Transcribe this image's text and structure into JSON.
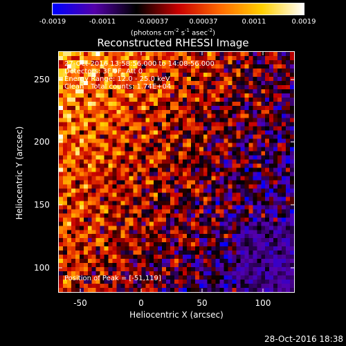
{
  "colorbar": {
    "ticks": [
      "-0.0019",
      "-0.0011",
      "-0.00037",
      "0.00037",
      "0.0011",
      "0.0019"
    ],
    "unit_prefix": "(photons cm",
    "unit_exp1": "-2",
    "unit_mid1": " s",
    "unit_exp2": "-1",
    "unit_mid2": " asec",
    "unit_exp3": "-2",
    "unit_suffix": ")",
    "colors": [
      "#0000ff",
      "#5500aa",
      "#000000",
      "#c80000",
      "#ff6a00",
      "#ffd000",
      "#ffffff"
    ]
  },
  "title": "Reconstructed RHESSI Image",
  "info": {
    "time": "27-Oct-2016 13:58:56.000 to 14:08:56.000",
    "detectors": "Detectors: 3F 9F, Att 0",
    "energy": "Energy Range: 12.0 - 25.0 keV",
    "method": "Clean",
    "counts": "Total counts: 1.74E+04",
    "peak": "Position of Peak = [-51,119]"
  },
  "x_axis": {
    "label": "Heliocentric X (arcsec)",
    "ticks": [
      "-50",
      "0",
      "50",
      "100"
    ]
  },
  "y_axis": {
    "label": "Heliocentric Y (arcsec)",
    "ticks": [
      "250",
      "200",
      "150",
      "100"
    ]
  },
  "datestamp": "28-Oct-2016 18:38"
}
